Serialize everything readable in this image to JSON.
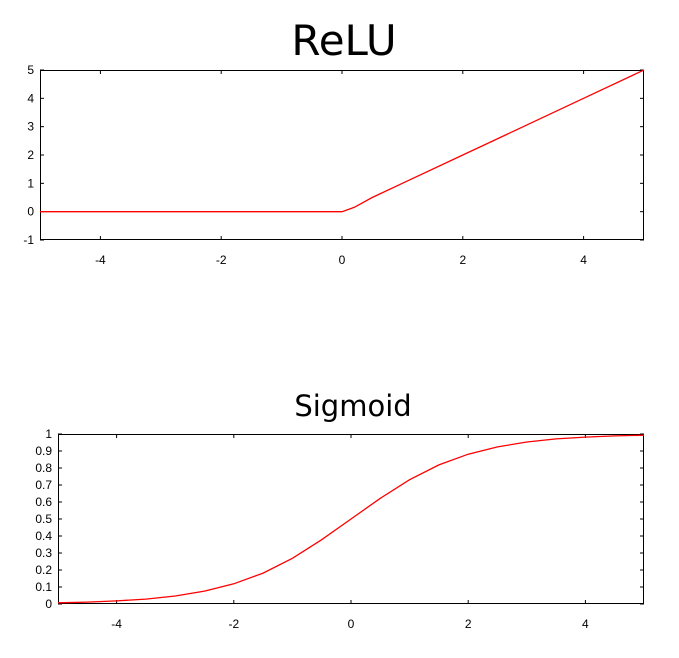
{
  "chart_data": [
    {
      "type": "line",
      "title": "ReLU",
      "xlabel": "",
      "ylabel": "",
      "xlim": [
        -5,
        5
      ],
      "ylim": [
        -1,
        5
      ],
      "xticks": [
        -4,
        -2,
        0,
        2,
        4
      ],
      "yticks": [
        -1,
        0,
        1,
        2,
        3,
        4,
        5
      ],
      "xtick_labels": [
        "-4",
        "-2",
        "0",
        "2",
        "4"
      ],
      "ytick_labels": [
        "-1",
        "0",
        "1",
        "2",
        "3",
        "4",
        "5"
      ],
      "grid": false,
      "legend": "none",
      "series": [
        {
          "color": "#ff0000",
          "x": [
            -5,
            -4,
            -3,
            -2,
            -1,
            -0.5,
            0,
            0.2,
            0.5,
            1,
            2,
            3,
            4,
            5
          ],
          "y": [
            0,
            0,
            0,
            0,
            0,
            0,
            0,
            0.15,
            0.5,
            1,
            2,
            3,
            4,
            5
          ]
        }
      ]
    },
    {
      "type": "line",
      "title": "Sigmoid",
      "xlabel": "",
      "ylabel": "",
      "xlim": [
        -5,
        5
      ],
      "ylim": [
        0,
        1
      ],
      "xticks": [
        -4,
        -2,
        0,
        2,
        4
      ],
      "yticks": [
        0,
        0.1,
        0.2,
        0.3,
        0.4,
        0.5,
        0.6,
        0.7,
        0.8,
        0.9,
        1
      ],
      "xtick_labels": [
        "-4",
        "-2",
        "0",
        "2",
        "4"
      ],
      "ytick_labels": [
        "0",
        "0.1",
        "0.2",
        "0.3",
        "0.4",
        "0.5",
        "0.6",
        "0.7",
        "0.8",
        "0.9",
        "1"
      ],
      "grid": false,
      "legend": "none",
      "series": [
        {
          "color": "#ff0000",
          "x": [
            -5,
            -4.5,
            -4,
            -3.5,
            -3,
            -2.5,
            -2,
            -1.5,
            -1,
            -0.5,
            0,
            0.5,
            1,
            1.5,
            2,
            2.5,
            3,
            3.5,
            4,
            4.5,
            5
          ],
          "y": [
            0.007,
            0.011,
            0.018,
            0.029,
            0.047,
            0.076,
            0.119,
            0.182,
            0.269,
            0.378,
            0.5,
            0.622,
            0.731,
            0.818,
            0.881,
            0.924,
            0.953,
            0.971,
            0.982,
            0.989,
            0.993
          ]
        }
      ]
    }
  ]
}
